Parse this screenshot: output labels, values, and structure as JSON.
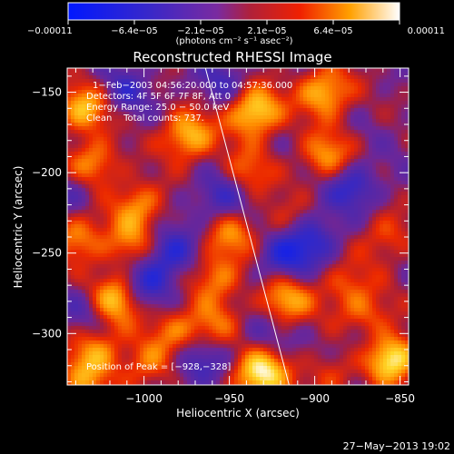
{
  "chart_data": {
    "type": "heatmap",
    "title": "Reconstructed RHESSI Image",
    "xlabel": "Heliocentric X (arcsec)",
    "ylabel": "Heliocentric Y (arcsec)",
    "xlim": [
      -1045,
      -845
    ],
    "ylim": [
      -332,
      -135
    ],
    "x_ticks": [
      {
        "value": -1000,
        "label": "−1000"
      },
      {
        "value": -950,
        "label": "−950"
      },
      {
        "value": -900,
        "label": "−900"
      },
      {
        "value": -850,
        "label": "−850"
      }
    ],
    "y_ticks": [
      {
        "value": -150,
        "label": "−150"
      },
      {
        "value": -200,
        "label": "−200"
      },
      {
        "value": -250,
        "label": "−250"
      },
      {
        "value": -300,
        "label": "−300"
      }
    ],
    "colorbar": {
      "range": [
        -0.00011,
        0.00011
      ],
      "tick_labels": [
        "−0.00011",
        "−6.4e−05",
        "−2.1e−05",
        "2.1e−05",
        "6.4e−05",
        "0.00011"
      ],
      "units_label": "(photons cm⁻² s⁻¹ asec⁻²)"
    },
    "annotations": [
      "1−Feb−2003 04:56:20.000 to 04:57:36.000",
      "Detectors: 4F 5F 6F 7F 8F, Att 0",
      "Energy Range: 25.0 − 50.0 keV",
      "Clean    Total counts: 737."
    ],
    "peak": {
      "x": -928,
      "y": -328,
      "label": "Position of Peak = [−928,−328]"
    },
    "limb_line": [
      [
        -964,
        -135
      ],
      [
        -915,
        -332
      ]
    ],
    "peaks": [
      {
        "x": -932,
        "y": -325,
        "v": 1.0
      },
      {
        "x": -855,
        "y": -315,
        "v": 0.95
      },
      {
        "x": -935,
        "y": -162,
        "v": 0.9
      },
      {
        "x": -1017,
        "y": -279,
        "v": 0.88
      },
      {
        "x": -974,
        "y": -177,
        "v": 0.75
      },
      {
        "x": -894,
        "y": -150,
        "v": 0.75
      },
      {
        "x": -1035,
        "y": -160,
        "v": 0.7
      },
      {
        "x": -918,
        "y": -280,
        "v": 0.7
      },
      {
        "x": -1030,
        "y": -195,
        "v": 0.62
      },
      {
        "x": -893,
        "y": -190,
        "v": 0.6
      },
      {
        "x": -1038,
        "y": -240,
        "v": 0.55
      },
      {
        "x": -1028,
        "y": -310,
        "v": 0.55
      },
      {
        "x": -1003,
        "y": -220,
        "v": 0.55
      },
      {
        "x": -1008,
        "y": -245,
        "v": 0.5
      },
      {
        "x": -950,
        "y": -240,
        "v": 0.5
      },
      {
        "x": -957,
        "y": -265,
        "v": 0.5
      },
      {
        "x": -870,
        "y": -290,
        "v": 0.5
      },
      {
        "x": -982,
        "y": -298,
        "v": 0.45
      },
      {
        "x": -960,
        "y": -296,
        "v": 0.45
      },
      {
        "x": -1035,
        "y": -330,
        "v": 0.45
      },
      {
        "x": -940,
        "y": -200,
        "v": 0.45
      },
      {
        "x": -998,
        "y": -320,
        "v": 0.45
      },
      {
        "x": -858,
        "y": -240,
        "v": 0.4
      },
      {
        "x": -882,
        "y": -270,
        "v": 0.4
      },
      {
        "x": -890,
        "y": -325,
        "v": 0.35
      },
      {
        "x": -918,
        "y": -230,
        "v": 0.3
      }
    ],
    "troughs": [
      {
        "x": -985,
        "y": -250,
        "v": -0.55
      },
      {
        "x": -918,
        "y": -252,
        "v": -0.6
      },
      {
        "x": -878,
        "y": -208,
        "v": -0.5
      },
      {
        "x": -900,
        "y": -240,
        "v": -0.45
      },
      {
        "x": -1000,
        "y": -270,
        "v": -0.5
      },
      {
        "x": -955,
        "y": -215,
        "v": -0.45
      },
      {
        "x": -968,
        "y": -318,
        "v": -0.45
      },
      {
        "x": -1030,
        "y": -285,
        "v": -0.35
      },
      {
        "x": -930,
        "y": -300,
        "v": -0.3
      },
      {
        "x": -872,
        "y": -305,
        "v": -0.3
      },
      {
        "x": -1040,
        "y": -210,
        "v": -0.3
      },
      {
        "x": -1012,
        "y": -150,
        "v": -0.35
      },
      {
        "x": -955,
        "y": -145,
        "v": -0.3
      }
    ]
  },
  "footer": {
    "timestamp": "27−May−2013 19:02"
  }
}
